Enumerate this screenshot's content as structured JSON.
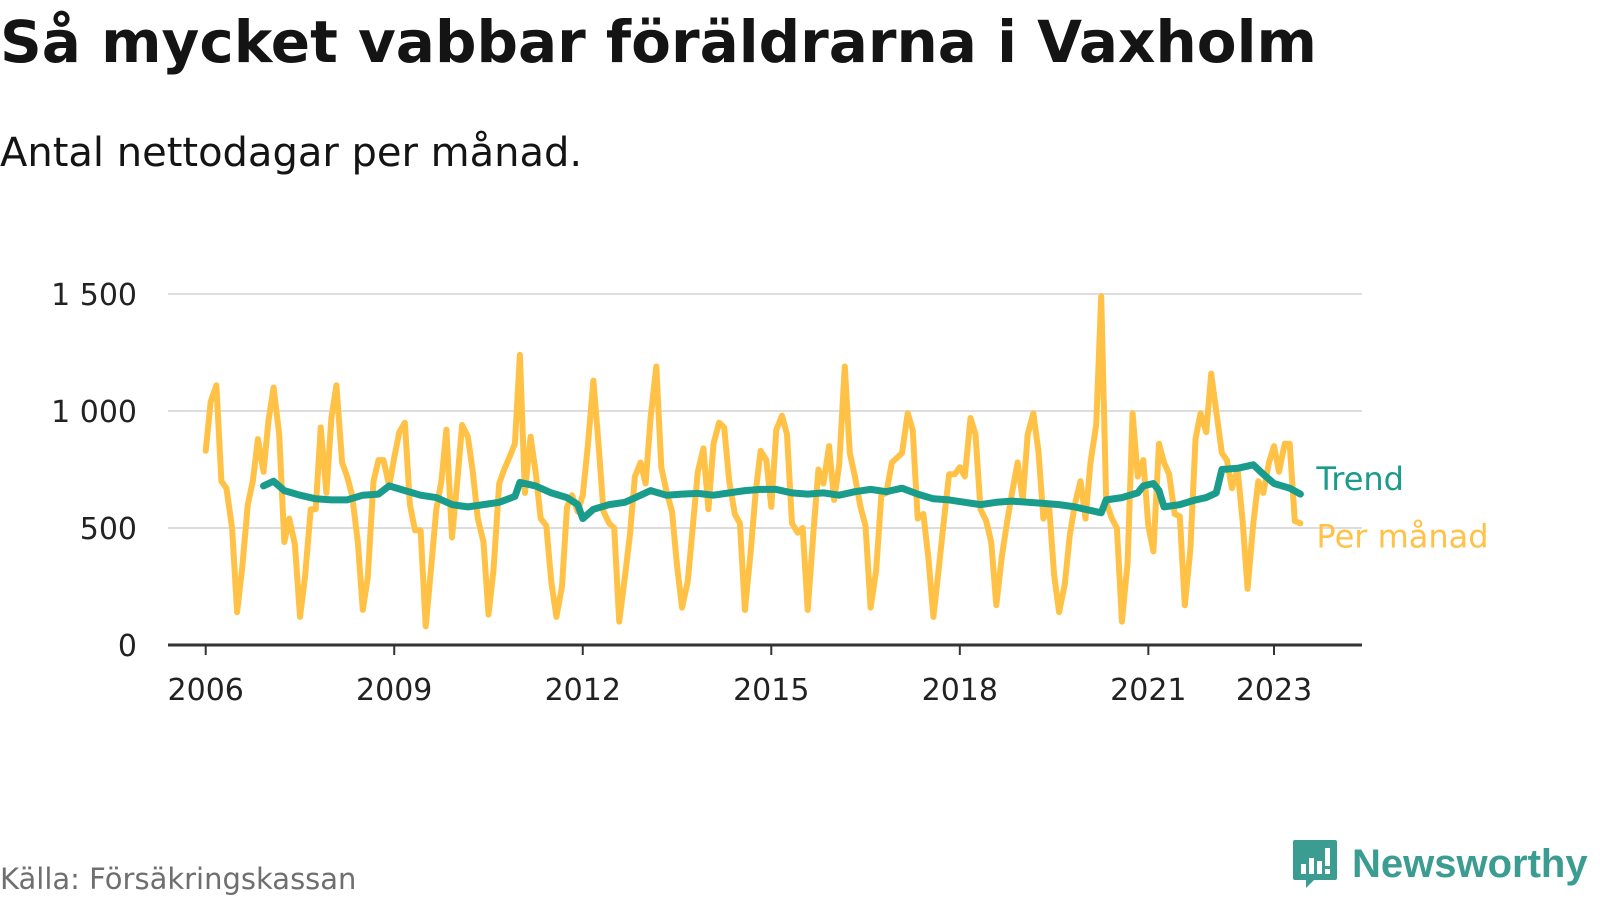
{
  "title": "Så mycket vabbar föräldrarna i Vaxholm",
  "subtitle": "Antal nettodagar per månad.",
  "source": "Källa: Försäkringskassan",
  "brand": "Newsworthy",
  "colors": {
    "monthly": "#FFC247",
    "trend": "#1A9C8C",
    "grid": "#DDDDDD",
    "axis": "#333333",
    "brand": "#3B9C92"
  },
  "chart_data": {
    "type": "line",
    "title": "Så mycket vabbar föräldrarna i Vaxholm",
    "subtitle": "Antal nettodagar per månad.",
    "xlabel": "",
    "ylabel": "",
    "ylim": [
      0,
      1500
    ],
    "xlim": [
      2005.4,
      2024.4
    ],
    "yticks": [
      0,
      500,
      1000,
      1500
    ],
    "ytick_labels": [
      "0",
      "500",
      "1 000",
      "1 500"
    ],
    "xticks": [
      2006,
      2009,
      2012,
      2015,
      2018,
      2021,
      2023
    ],
    "xtick_labels": [
      "2006",
      "2009",
      "2012",
      "2015",
      "2018",
      "2021",
      "2023"
    ],
    "grid": true,
    "legend": "inline labels at line ends (right)",
    "series": [
      {
        "name": "Per månad",
        "color": "#FFC247",
        "points": [
          [
            2006.0,
            830
          ],
          [
            2006.08,
            1040
          ],
          [
            2006.17,
            1110
          ],
          [
            2006.25,
            700
          ],
          [
            2006.33,
            670
          ],
          [
            2006.42,
            500
          ],
          [
            2006.5,
            140
          ],
          [
            2006.58,
            330
          ],
          [
            2006.67,
            600
          ],
          [
            2006.75,
            700
          ],
          [
            2006.83,
            880
          ],
          [
            2006.92,
            740
          ],
          [
            2007.0,
            960
          ],
          [
            2007.08,
            1100
          ],
          [
            2007.17,
            900
          ],
          [
            2007.25,
            440
          ],
          [
            2007.33,
            540
          ],
          [
            2007.42,
            430
          ],
          [
            2007.5,
            120
          ],
          [
            2007.58,
            290
          ],
          [
            2007.67,
            580
          ],
          [
            2007.75,
            580
          ],
          [
            2007.83,
            930
          ],
          [
            2007.92,
            650
          ],
          [
            2008.0,
            970
          ],
          [
            2008.08,
            1110
          ],
          [
            2008.17,
            780
          ],
          [
            2008.25,
            720
          ],
          [
            2008.33,
            640
          ],
          [
            2008.42,
            440
          ],
          [
            2008.5,
            150
          ],
          [
            2008.58,
            290
          ],
          [
            2008.67,
            700
          ],
          [
            2008.75,
            790
          ],
          [
            2008.83,
            790
          ],
          [
            2008.92,
            680
          ],
          [
            2009.0,
            800
          ],
          [
            2009.08,
            910
          ],
          [
            2009.17,
            950
          ],
          [
            2009.25,
            600
          ],
          [
            2009.33,
            490
          ],
          [
            2009.42,
            490
          ],
          [
            2009.5,
            80
          ],
          [
            2009.58,
            310
          ],
          [
            2009.67,
            580
          ],
          [
            2009.75,
            700
          ],
          [
            2009.83,
            920
          ],
          [
            2009.92,
            460
          ],
          [
            2010.0,
            690
          ],
          [
            2010.08,
            940
          ],
          [
            2010.17,
            890
          ],
          [
            2010.25,
            740
          ],
          [
            2010.33,
            540
          ],
          [
            2010.42,
            440
          ],
          [
            2010.5,
            130
          ],
          [
            2010.58,
            320
          ],
          [
            2010.67,
            690
          ],
          [
            2010.75,
            750
          ],
          [
            2010.83,
            800
          ],
          [
            2010.92,
            860
          ],
          [
            2011.0,
            1240
          ],
          [
            2011.08,
            650
          ],
          [
            2011.17,
            890
          ],
          [
            2011.25,
            740
          ],
          [
            2011.33,
            540
          ],
          [
            2011.42,
            510
          ],
          [
            2011.5,
            270
          ],
          [
            2011.58,
            120
          ],
          [
            2011.67,
            250
          ],
          [
            2011.75,
            590
          ],
          [
            2011.83,
            640
          ],
          [
            2011.92,
            570
          ],
          [
            2012.0,
            640
          ],
          [
            2012.08,
            850
          ],
          [
            2012.17,
            1130
          ],
          [
            2012.25,
            860
          ],
          [
            2012.33,
            570
          ],
          [
            2012.42,
            520
          ],
          [
            2012.5,
            500
          ],
          [
            2012.58,
            100
          ],
          [
            2012.67,
            290
          ],
          [
            2012.75,
            470
          ],
          [
            2012.83,
            720
          ],
          [
            2012.92,
            780
          ],
          [
            2013.0,
            690
          ],
          [
            2013.08,
            970
          ],
          [
            2013.17,
            1190
          ],
          [
            2013.25,
            760
          ],
          [
            2013.33,
            660
          ],
          [
            2013.42,
            570
          ],
          [
            2013.5,
            340
          ],
          [
            2013.58,
            160
          ],
          [
            2013.67,
            270
          ],
          [
            2013.75,
            500
          ],
          [
            2013.83,
            740
          ],
          [
            2013.92,
            840
          ],
          [
            2014.0,
            580
          ],
          [
            2014.08,
            860
          ],
          [
            2014.17,
            950
          ],
          [
            2014.25,
            930
          ],
          [
            2014.33,
            700
          ],
          [
            2014.42,
            560
          ],
          [
            2014.5,
            520
          ],
          [
            2014.58,
            150
          ],
          [
            2014.67,
            390
          ],
          [
            2014.75,
            650
          ],
          [
            2014.83,
            830
          ],
          [
            2014.92,
            790
          ],
          [
            2015.0,
            590
          ],
          [
            2015.08,
            920
          ],
          [
            2015.17,
            980
          ],
          [
            2015.25,
            900
          ],
          [
            2015.33,
            520
          ],
          [
            2015.42,
            480
          ],
          [
            2015.5,
            500
          ],
          [
            2015.58,
            150
          ],
          [
            2015.67,
            480
          ],
          [
            2015.75,
            750
          ],
          [
            2015.83,
            690
          ],
          [
            2015.92,
            850
          ],
          [
            2016.0,
            620
          ],
          [
            2016.08,
            770
          ],
          [
            2016.17,
            1190
          ],
          [
            2016.25,
            820
          ],
          [
            2016.33,
            720
          ],
          [
            2016.42,
            590
          ],
          [
            2016.5,
            510
          ],
          [
            2016.58,
            160
          ],
          [
            2016.67,
            320
          ],
          [
            2016.75,
            640
          ],
          [
            2016.83,
            650
          ],
          [
            2016.92,
            780
          ],
          [
            2017.0,
            800
          ],
          [
            2017.08,
            820
          ],
          [
            2017.17,
            990
          ],
          [
            2017.25,
            920
          ],
          [
            2017.33,
            540
          ],
          [
            2017.42,
            560
          ],
          [
            2017.5,
            370
          ],
          [
            2017.58,
            120
          ],
          [
            2017.67,
            340
          ],
          [
            2017.75,
            540
          ],
          [
            2017.83,
            730
          ],
          [
            2017.92,
            730
          ],
          [
            2018.0,
            760
          ],
          [
            2018.08,
            720
          ],
          [
            2018.17,
            970
          ],
          [
            2018.25,
            900
          ],
          [
            2018.33,
            580
          ],
          [
            2018.42,
            530
          ],
          [
            2018.5,
            440
          ],
          [
            2018.58,
            170
          ],
          [
            2018.67,
            380
          ],
          [
            2018.75,
            520
          ],
          [
            2018.83,
            650
          ],
          [
            2018.92,
            780
          ],
          [
            2019.0,
            620
          ],
          [
            2019.08,
            900
          ],
          [
            2019.17,
            990
          ],
          [
            2019.25,
            830
          ],
          [
            2019.33,
            540
          ],
          [
            2019.42,
            600
          ],
          [
            2019.5,
            300
          ],
          [
            2019.58,
            140
          ],
          [
            2019.67,
            260
          ],
          [
            2019.75,
            470
          ],
          [
            2019.83,
            600
          ],
          [
            2019.92,
            700
          ],
          [
            2020.0,
            540
          ],
          [
            2020.08,
            780
          ],
          [
            2020.17,
            940
          ],
          [
            2020.25,
            1490
          ],
          [
            2020.33,
            610
          ],
          [
            2020.42,
            540
          ],
          [
            2020.5,
            500
          ],
          [
            2020.58,
            100
          ],
          [
            2020.67,
            350
          ],
          [
            2020.75,
            990
          ],
          [
            2020.83,
            720
          ],
          [
            2020.92,
            790
          ],
          [
            2021.0,
            510
          ],
          [
            2021.08,
            400
          ],
          [
            2021.17,
            860
          ],
          [
            2021.25,
            780
          ],
          [
            2021.33,
            730
          ],
          [
            2021.42,
            560
          ],
          [
            2021.5,
            550
          ],
          [
            2021.58,
            170
          ],
          [
            2021.67,
            410
          ],
          [
            2021.75,
            880
          ],
          [
            2021.83,
            990
          ],
          [
            2021.92,
            910
          ],
          [
            2022.0,
            1160
          ],
          [
            2022.08,
            1000
          ],
          [
            2022.17,
            820
          ],
          [
            2022.25,
            790
          ],
          [
            2022.33,
            670
          ],
          [
            2022.42,
            750
          ],
          [
            2022.5,
            530
          ],
          [
            2022.58,
            240
          ],
          [
            2022.67,
            520
          ],
          [
            2022.75,
            700
          ],
          [
            2022.83,
            650
          ],
          [
            2022.92,
            780
          ],
          [
            2023.0,
            850
          ],
          [
            2023.08,
            740
          ],
          [
            2023.17,
            860
          ],
          [
            2023.25,
            860
          ],
          [
            2023.33,
            530
          ],
          [
            2023.42,
            520
          ]
        ]
      },
      {
        "name": "Trend",
        "color": "#1A9C8C",
        "points": [
          [
            2006.92,
            680
          ],
          [
            2007.08,
            700
          ],
          [
            2007.25,
            660
          ],
          [
            2007.5,
            640
          ],
          [
            2007.75,
            625
          ],
          [
            2008.0,
            620
          ],
          [
            2008.25,
            620
          ],
          [
            2008.5,
            640
          ],
          [
            2008.75,
            645
          ],
          [
            2008.92,
            680
          ],
          [
            2009.17,
            660
          ],
          [
            2009.42,
            640
          ],
          [
            2009.67,
            630
          ],
          [
            2009.92,
            600
          ],
          [
            2010.17,
            590
          ],
          [
            2010.42,
            600
          ],
          [
            2010.67,
            610
          ],
          [
            2010.92,
            635
          ],
          [
            2011.0,
            695
          ],
          [
            2011.25,
            680
          ],
          [
            2011.5,
            650
          ],
          [
            2011.75,
            630
          ],
          [
            2011.92,
            600
          ],
          [
            2012.0,
            540
          ],
          [
            2012.17,
            580
          ],
          [
            2012.42,
            600
          ],
          [
            2012.67,
            610
          ],
          [
            2012.92,
            640
          ],
          [
            2013.08,
            660
          ],
          [
            2013.33,
            640
          ],
          [
            2013.58,
            645
          ],
          [
            2013.83,
            648
          ],
          [
            2014.08,
            640
          ],
          [
            2014.33,
            650
          ],
          [
            2014.58,
            660
          ],
          [
            2014.83,
            665
          ],
          [
            2015.08,
            665
          ],
          [
            2015.33,
            650
          ],
          [
            2015.58,
            645
          ],
          [
            2015.83,
            650
          ],
          [
            2016.08,
            640
          ],
          [
            2016.33,
            655
          ],
          [
            2016.58,
            665
          ],
          [
            2016.83,
            655
          ],
          [
            2017.08,
            670
          ],
          [
            2017.33,
            645
          ],
          [
            2017.58,
            625
          ],
          [
            2017.83,
            620
          ],
          [
            2018.08,
            610
          ],
          [
            2018.33,
            600
          ],
          [
            2018.58,
            610
          ],
          [
            2018.83,
            615
          ],
          [
            2019.08,
            610
          ],
          [
            2019.33,
            605
          ],
          [
            2019.58,
            600
          ],
          [
            2019.83,
            590
          ],
          [
            2020.08,
            575
          ],
          [
            2020.25,
            565
          ],
          [
            2020.33,
            620
          ],
          [
            2020.58,
            630
          ],
          [
            2020.83,
            650
          ],
          [
            2020.92,
            680
          ],
          [
            2021.08,
            690
          ],
          [
            2021.17,
            660
          ],
          [
            2021.25,
            590
          ],
          [
            2021.5,
            600
          ],
          [
            2021.75,
            620
          ],
          [
            2021.92,
            630
          ],
          [
            2022.08,
            650
          ],
          [
            2022.17,
            750
          ],
          [
            2022.42,
            755
          ],
          [
            2022.67,
            770
          ],
          [
            2022.83,
            730
          ],
          [
            2023.0,
            690
          ],
          [
            2023.25,
            670
          ],
          [
            2023.42,
            645
          ]
        ]
      }
    ]
  }
}
